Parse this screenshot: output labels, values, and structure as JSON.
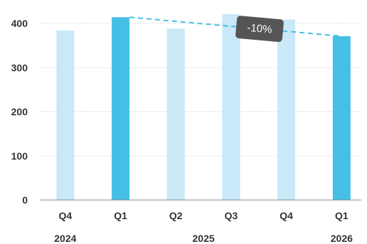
{
  "chart_data": {
    "type": "bar",
    "categories": [
      "Q4",
      "Q1",
      "Q2",
      "Q3",
      "Q4",
      "Q1"
    ],
    "years": [
      {
        "label": "2024",
        "from": 0,
        "to": 0
      },
      {
        "label": "2025",
        "from": 1,
        "to": 4
      },
      {
        "label": "2026",
        "from": 5,
        "to": 5
      }
    ],
    "values": [
      384,
      414,
      388,
      421,
      409,
      371
    ],
    "highlighted": [
      false,
      true,
      false,
      false,
      false,
      true
    ],
    "ylim": [
      0,
      450
    ],
    "yticks": [
      0,
      100,
      200,
      300,
      400
    ],
    "grid": true,
    "annotation": {
      "text": "-10%",
      "from_index": 1,
      "to_index": 5
    },
    "colors": {
      "bar": "#c9e8f8",
      "bar_highlight": "#45bfe6",
      "trend_line": "#45bfe6",
      "callout_bg": "#555555",
      "grid": "#d9d9d9",
      "baseline": "#888888",
      "text": "#333333"
    }
  }
}
